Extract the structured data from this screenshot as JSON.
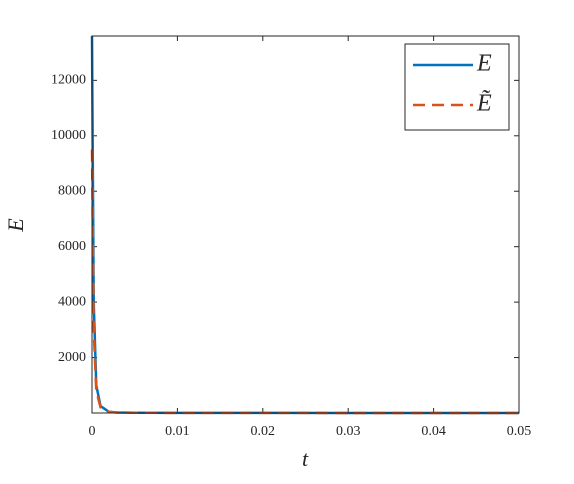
{
  "chart_data": {
    "type": "line",
    "x_label": "t",
    "y_label": "E",
    "x": [
      0,
      0.0002,
      0.0005,
      0.001,
      0.002,
      0.003,
      0.005,
      0.01,
      0.02,
      0.03,
      0.04,
      0.05
    ],
    "series": [
      {
        "name": "E",
        "color": "#0072bd",
        "dash": "solid",
        "values": [
          13600,
          4000,
          1000,
          250,
          40,
          20,
          10,
          5,
          3,
          2,
          2,
          2
        ]
      },
      {
        "name": "Ẽ",
        "color": "#d95319",
        "dash": "dashed",
        "values": [
          9500,
          3000,
          800,
          200,
          40,
          20,
          10,
          5,
          3,
          2,
          2,
          2
        ]
      }
    ],
    "xlim": [
      0,
      0.05
    ],
    "xticks": [
      0,
      0.01,
      0.02,
      0.03,
      0.04,
      0.05
    ],
    "ylim": [
      0,
      13600
    ],
    "yticks": [
      2000,
      4000,
      6000,
      8000,
      10000,
      12000
    ],
    "grid": false,
    "legend": "upper right"
  }
}
